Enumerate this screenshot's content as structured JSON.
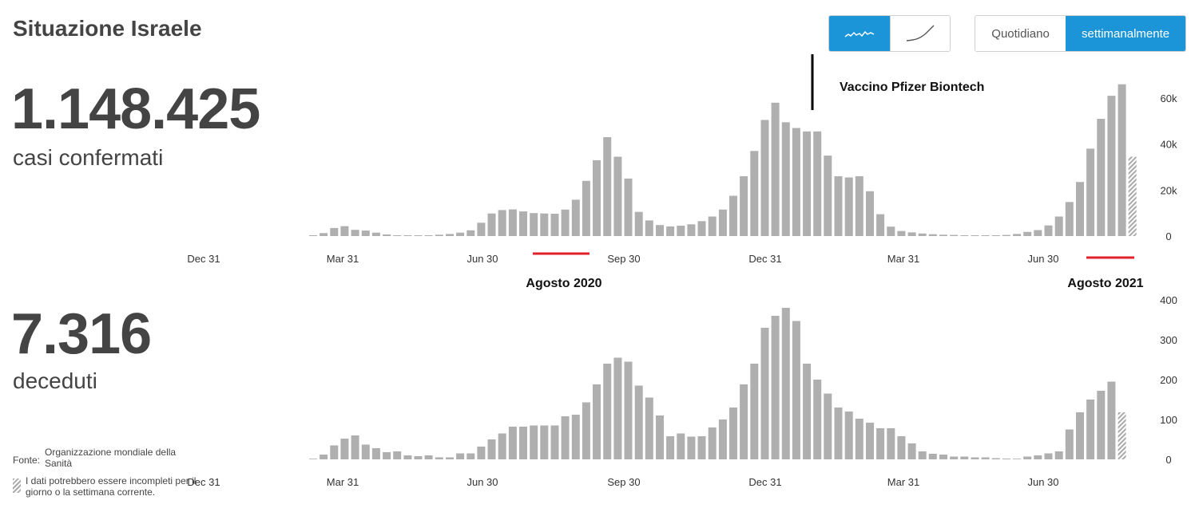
{
  "title": "Situazione Israele",
  "cases": {
    "value": "1.148.425",
    "label": "casi confermati"
  },
  "deaths": {
    "value": "7.316",
    "label": "deceduti"
  },
  "chart_style_toggle": {
    "options": [
      "bar-chart-icon",
      "line-chart-icon"
    ],
    "selected": 0
  },
  "period_toggle": {
    "options": [
      "Quotidiano",
      "settimanalmente"
    ],
    "selected": 1
  },
  "source": {
    "label": "Fonte:",
    "value": "Organizzazione mondiale della Sanità"
  },
  "note": "I dati potrebbero essere incompleti per il giorno o la settimana corrente.",
  "annotations": {
    "vaccine": "Vaccino Pfizer Biontech",
    "aug2020": "Agosto 2020",
    "aug2021": "Agosto 2021"
  },
  "colors": {
    "bar": "#b0afaf",
    "accent": "#1b95d8",
    "highlight": "#e0202a"
  },
  "chart_data": [
    {
      "type": "bar",
      "name": "cases",
      "x_tick_labels": [
        "Dec 31",
        "Mar 31",
        "Jun 30",
        "Sep 30",
        "Dec 31",
        "Mar 31",
        "Jun 30"
      ],
      "y_ticks": [
        0,
        20000,
        40000,
        60000
      ],
      "y_tick_labels": [
        "0",
        "20k",
        "40k",
        "60k"
      ],
      "ylim": [
        0,
        65000
      ],
      "grid": false,
      "values": [
        200,
        1300,
        3500,
        4300,
        2700,
        2400,
        1500,
        700,
        300,
        150,
        200,
        300,
        600,
        900,
        1500,
        2500,
        5800,
        9800,
        11300,
        11600,
        10700,
        10000,
        9800,
        9700,
        11500,
        15800,
        24000,
        33000,
        43000,
        34500,
        25000,
        10500,
        6800,
        4800,
        4200,
        4500,
        5100,
        6500,
        8500,
        11500,
        17500,
        26000,
        37000,
        50500,
        58000,
        49500,
        47000,
        45500,
        45500,
        35000,
        26000,
        25500,
        26000,
        19500,
        9500,
        4100,
        2200,
        1600,
        1100,
        800,
        600,
        500,
        300,
        200,
        200,
        300,
        500,
        900,
        1800,
        2600,
        4600,
        8500,
        14800,
        23500,
        38000,
        51000,
        61000,
        66000
      ],
      "partial_last": 34500
    },
    {
      "type": "bar",
      "name": "deaths",
      "x_tick_labels": [
        "Dec 31",
        "Mar 31",
        "Jun 30",
        "Sep 30",
        "Dec 31",
        "Mar 31",
        "Jun 30"
      ],
      "y_ticks": [
        0,
        100,
        200,
        300,
        400
      ],
      "y_tick_labels": [
        "0",
        "100",
        "200",
        "300",
        "400"
      ],
      "ylim": [
        0,
        400
      ],
      "grid": false,
      "values": [
        0,
        12,
        35,
        52,
        60,
        37,
        28,
        18,
        20,
        10,
        8,
        10,
        5,
        5,
        15,
        15,
        32,
        50,
        65,
        82,
        82,
        85,
        85,
        85,
        108,
        112,
        143,
        188,
        240,
        255,
        245,
        185,
        155,
        110,
        58,
        65,
        57,
        58,
        80,
        100,
        130,
        188,
        240,
        330,
        360,
        380,
        347,
        240,
        200,
        165,
        130,
        120,
        102,
        92,
        78,
        78,
        58,
        40,
        20,
        14,
        12,
        7,
        7,
        5,
        5,
        3,
        2,
        0,
        7,
        10,
        15,
        20,
        75,
        118,
        150,
        172,
        195
      ],
      "partial_last": 118
    }
  ]
}
